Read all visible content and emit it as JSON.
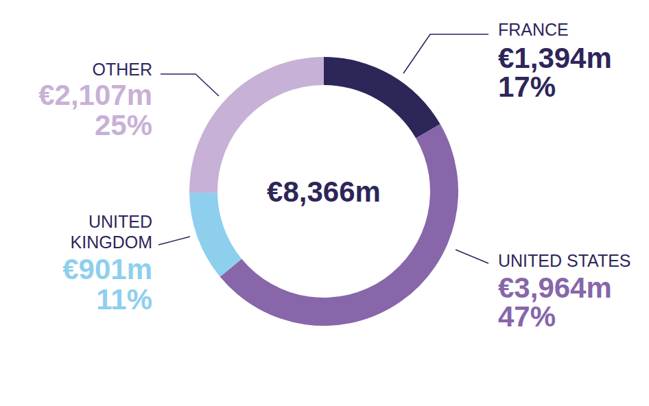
{
  "chart_data": {
    "type": "donut",
    "categories": [
      "FRANCE",
      "UNITED STATES",
      "UNITED KINGDOM",
      "OTHER"
    ],
    "values": [
      1394,
      3964,
      901,
      2107
    ],
    "value_labels": [
      "€1,394m",
      "€3,964m",
      "€901m",
      "€2,107m"
    ],
    "percent_labels": [
      "17%",
      "47%",
      "11%",
      "25%"
    ],
    "colors": [
      "#2d2659",
      "#8766aa",
      "#8ecfee",
      "#c7b1d6"
    ],
    "total": 8366,
    "total_label": "€8,366m",
    "data_labels": true
  }
}
